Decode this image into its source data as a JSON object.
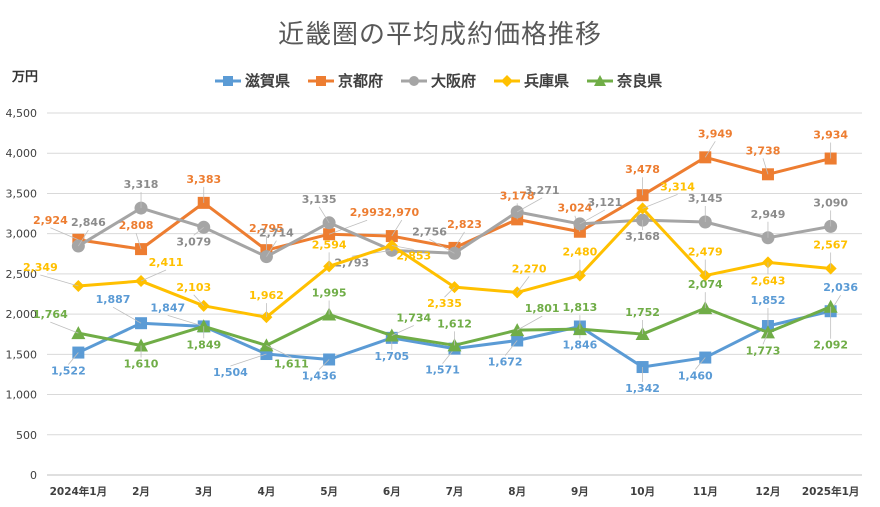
{
  "title": "近畿圏の平均成約価格推移",
  "unit": "万円",
  "chart_data": {
    "type": "line",
    "title": "近畿圏の平均成約価格推移",
    "ylabel": "万円",
    "ylim": [
      0,
      4500
    ],
    "yticks": [
      "0",
      "500",
      "1,000",
      "1,500",
      "2,000",
      "2,500",
      "3,000",
      "3,500",
      "4,000",
      "4,500"
    ],
    "grid": true,
    "legend_position": "top",
    "categories": [
      "2024年1月",
      "2月",
      "3月",
      "4月",
      "5月",
      "6月",
      "7月",
      "8月",
      "9月",
      "10月",
      "11月",
      "12月",
      "2025年1月"
    ],
    "series": [
      {
        "name": "滋賀県",
        "color": "#5b9bd5",
        "marker": "square",
        "values": [
          1522,
          1887,
          1847,
          1504,
          1436,
          1705,
          1571,
          1672,
          1846,
          1342,
          1460,
          1852,
          2036
        ],
        "labels": [
          "1,522",
          "1,887",
          "1,847",
          "1,504",
          "1,436",
          "1,705",
          "1,571",
          "1,672",
          "1,846",
          "1,342",
          "1,460",
          "1,852",
          "2,036"
        ]
      },
      {
        "name": "京都府",
        "color": "#ed7d31",
        "marker": "square",
        "values": [
          2924,
          2808,
          3383,
          2795,
          2993,
          2970,
          2823,
          3178,
          3024,
          3478,
          3949,
          3738,
          3934
        ],
        "labels": [
          "2,924",
          "2,808",
          "3,383",
          "2,795",
          "2,993",
          "2,970",
          "2,823",
          "3,178",
          "3,024",
          "3,478",
          "3,949",
          "3,738",
          "3,934"
        ]
      },
      {
        "name": "大阪府",
        "color": "#a5a5a5",
        "marker": "circle",
        "values": [
          2846,
          3318,
          3079,
          2714,
          3135,
          2793,
          2756,
          3271,
          3121,
          3168,
          3145,
          2949,
          3090
        ],
        "labels": [
          "2,846",
          "3,318",
          "3,079",
          "2,714",
          "3,135",
          "2,793",
          "2,756",
          "3,271",
          "3,121",
          "3,168",
          "3,145",
          "2,949",
          "3,090"
        ]
      },
      {
        "name": "兵庫県",
        "color": "#ffc000",
        "marker": "diamond",
        "values": [
          2349,
          2411,
          2103,
          1962,
          2594,
          2853,
          2335,
          2270,
          2480,
          3314,
          2479,
          2643,
          2567
        ],
        "labels": [
          "2,349",
          "2,411",
          "2,103",
          "1,962",
          "2,594",
          "2,853",
          "2,335",
          "2,270",
          "2,480",
          "3,314",
          "2,479",
          "2,643",
          "2,567"
        ]
      },
      {
        "name": "奈良県",
        "color": "#70ad47",
        "marker": "triangle",
        "values": [
          1764,
          1610,
          1849,
          1611,
          1995,
          1734,
          1612,
          1801,
          1813,
          1752,
          2074,
          1773,
          2092
        ],
        "labels": [
          "1,764",
          "1,610",
          "1,849",
          "1,611",
          "1,995",
          "1,734",
          "1,612",
          "1,801",
          "1,813",
          "1,752",
          "2,074",
          "1,773",
          "2,092"
        ]
      }
    ]
  }
}
